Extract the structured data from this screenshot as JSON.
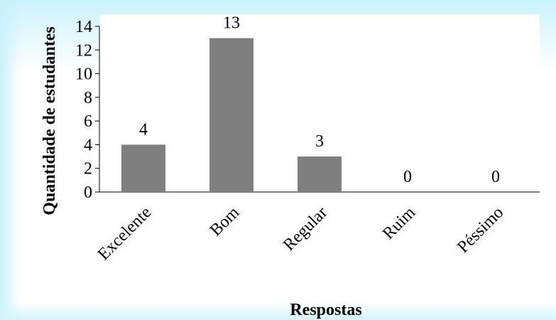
{
  "chart_data": {
    "type": "bar",
    "categories": [
      "Excelente",
      "Bom",
      "Regular",
      "Ruim",
      "Péssimo"
    ],
    "values": [
      4,
      13,
      3,
      0,
      0
    ],
    "title": "",
    "xlabel": "Respostas",
    "ylabel": "Quantidade  de estudantes",
    "ylim": [
      0,
      14
    ],
    "yticks": [
      0,
      2,
      4,
      6,
      8,
      10,
      12,
      14
    ],
    "grid": false,
    "legend": "none",
    "data_labels": true,
    "bar_color": "#7f7f7f"
  }
}
